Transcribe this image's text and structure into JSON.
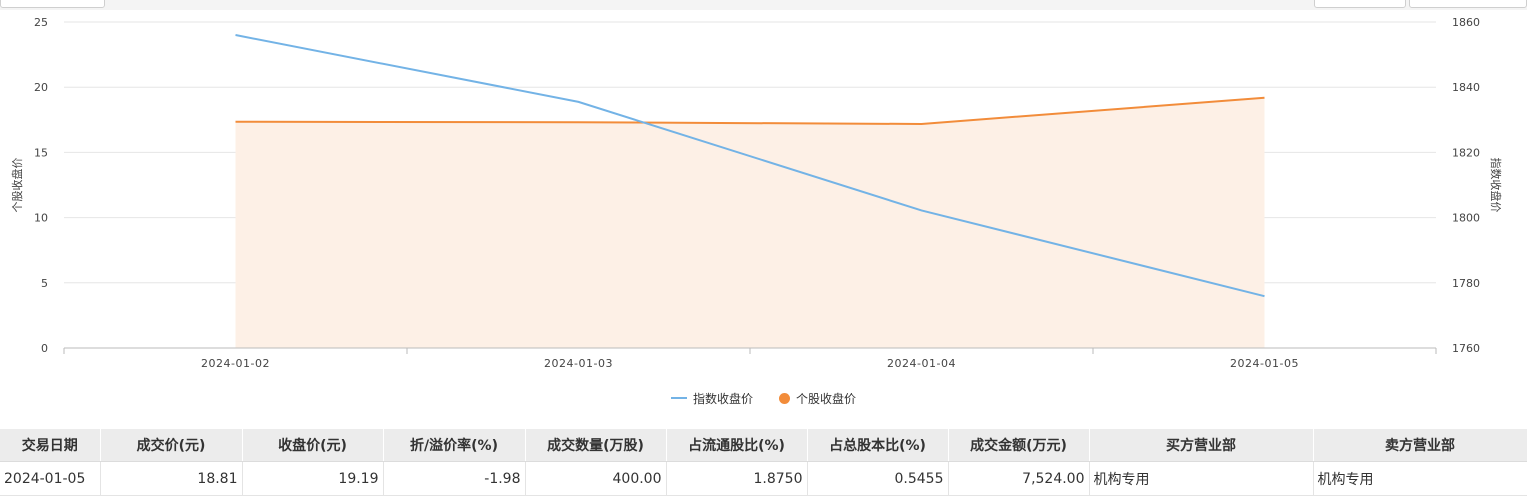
{
  "chart_data": {
    "type": "line",
    "categories": [
      "2024-01-02",
      "2024-01-03",
      "2024-01-04",
      "2024-01-05"
    ],
    "series": [
      {
        "name": "指数收盘价",
        "axis": "right",
        "color": "#73b3e6",
        "style": "line",
        "values": [
          1856.0,
          1835.5,
          1802.2,
          1775.9
        ]
      },
      {
        "name": "个股收盘价",
        "axis": "left",
        "color": "#f28c3a",
        "style": "area",
        "values": [
          17.35,
          17.31,
          17.18,
          19.19
        ]
      }
    ],
    "yleft": {
      "label": "个股收盘价",
      "ticks": [
        0,
        5,
        10,
        15,
        20,
        25
      ],
      "range": [
        0,
        25
      ]
    },
    "yright": {
      "label": "指数收盘价",
      "ticks": [
        1760,
        1780,
        1800,
        1820,
        1840,
        1860
      ],
      "range": [
        1760,
        1860
      ]
    },
    "grid": true,
    "legend_position": "bottom-center",
    "area_fill_color": "#fdf0e6"
  },
  "legend": {
    "index_label": "指数收盘价",
    "stock_label": "个股收盘价"
  },
  "table": {
    "headers": [
      "交易日期",
      "成交价(元)",
      "收盘价(元)",
      "折/溢价率(%)",
      "成交数量(万股)",
      "占流通股比(%)",
      "占总股本比(%)",
      "成交金额(万元)",
      "买方营业部",
      "卖方营业部"
    ],
    "rows": [
      [
        "2024-01-05",
        "18.81",
        "19.19",
        "-1.98",
        "400.00",
        "1.8750",
        "0.5455",
        "7,524.00",
        "机构专用",
        "机构专用"
      ]
    ]
  }
}
